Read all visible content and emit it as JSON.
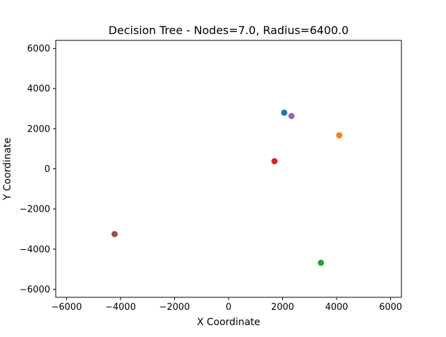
{
  "chart_data": {
    "type": "scatter",
    "title": "Decision Tree - Nodes=7.0, Radius=6400.0",
    "xlabel": "X Coordinate",
    "ylabel": "Y Coordinate",
    "xlim": [
      -6400,
      6400
    ],
    "ylim": [
      -6400,
      6400
    ],
    "xticks": [
      -6000,
      -4000,
      -2000,
      0,
      2000,
      4000,
      6000
    ],
    "xtick_labels": [
      "−6000",
      "−4000",
      "−2000",
      "0",
      "2000",
      "4000",
      "6000"
    ],
    "yticks": [
      -6000,
      -4000,
      -2000,
      0,
      2000,
      4000,
      6000
    ],
    "ytick_labels": [
      "−6000",
      "−4000",
      "−2000",
      "0",
      "2000",
      "4000",
      "6000"
    ],
    "grid": false,
    "points": [
      {
        "x": 2060,
        "y": 2800,
        "color": "#1f77b4"
      },
      {
        "x": 4100,
        "y": 1670,
        "color": "#ff7f0e"
      },
      {
        "x": 3420,
        "y": -4680,
        "color": "#2ca02c"
      },
      {
        "x": 1700,
        "y": 380,
        "color": "#d62728"
      },
      {
        "x": 2330,
        "y": 2630,
        "color": "#9467bd"
      },
      {
        "x": -4220,
        "y": -3250,
        "color": "#8c564b"
      }
    ]
  }
}
